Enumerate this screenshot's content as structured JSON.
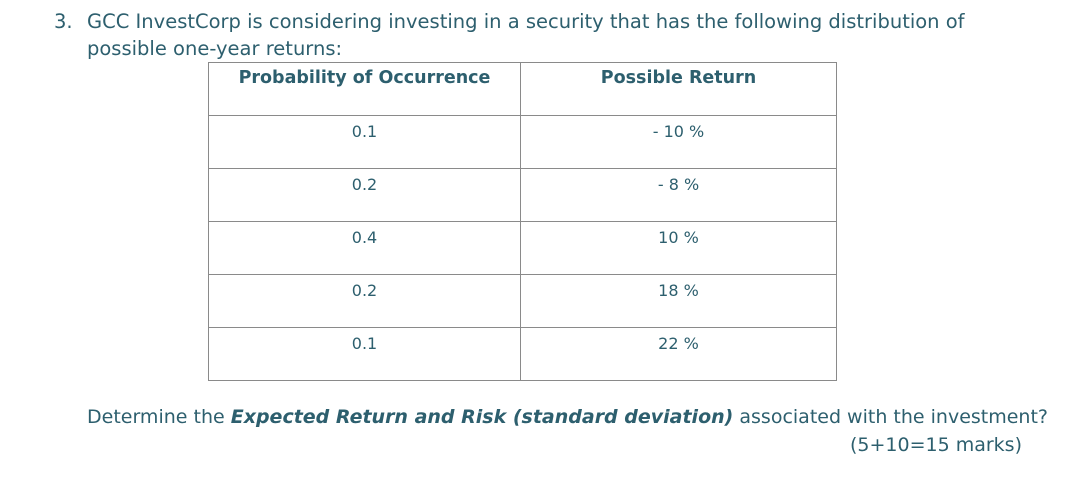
{
  "question": {
    "number": "3.",
    "text": "GCC InvestCorp is considering investing in a security that has the following distribution of possible one-year returns:"
  },
  "table": {
    "headers": [
      "Probability of Occurrence",
      "Possible Return"
    ],
    "rows": [
      {
        "probability": "0.1",
        "return": "- 10 %"
      },
      {
        "probability": "0.2",
        "return": "- 8 %"
      },
      {
        "probability": "0.4",
        "return": "10 %"
      },
      {
        "probability": "0.2",
        "return": "18 %"
      },
      {
        "probability": "0.1",
        "return": "22 %"
      }
    ]
  },
  "prompt": {
    "lead": "Determine the ",
    "emphasis": "Expected Return and Risk (standard deviation)",
    "tail": " associated with the investment?"
  },
  "marks": "(5+10=15 marks)",
  "colors": {
    "text": "#2d5f6e",
    "border": "#8a8a8a"
  }
}
